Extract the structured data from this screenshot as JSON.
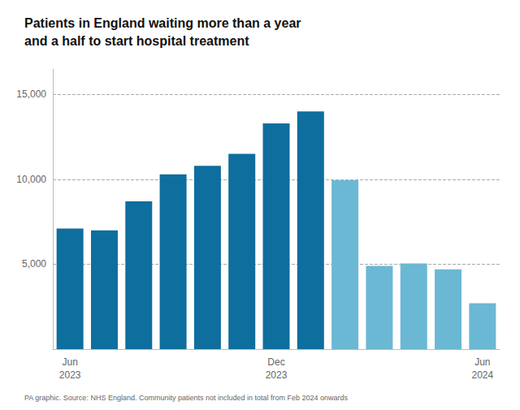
{
  "chart_data": {
    "type": "bar",
    "title": "Patients in England waiting more than a year\nand a half to start hospital treatment",
    "annotations": [
      "PA graphic. Source: NHS England. Community patients not included in total from Feb 2024 onwards"
    ],
    "categories": [
      "Jun\n2023",
      null,
      null,
      null,
      null,
      null,
      "Dec\n2023",
      null,
      null,
      null,
      null,
      null,
      "Jun\n2024"
    ],
    "values": [
      7100,
      7000,
      8700,
      10300,
      10800,
      11500,
      13300,
      14000,
      9950,
      4900,
      5050,
      4700,
      2700
    ],
    "colors": [
      "#0e6e9e",
      "#0e6e9e",
      "#0e6e9e",
      "#0e6e9e",
      "#0e6e9e",
      "#0e6e9e",
      "#0e6e9e",
      "#0e6e9e",
      "#6ab8d4",
      "#6ab8d4",
      "#6ab8d4",
      "#6ab8d4",
      "#6ab8d4"
    ],
    "ylim": [
      0,
      16500
    ],
    "yticks": [
      {
        "value": 5000,
        "label": "5,000"
      },
      {
        "value": 10000,
        "label": "10,000"
      },
      {
        "value": 15000,
        "label": "15,000"
      }
    ],
    "grid": true
  }
}
